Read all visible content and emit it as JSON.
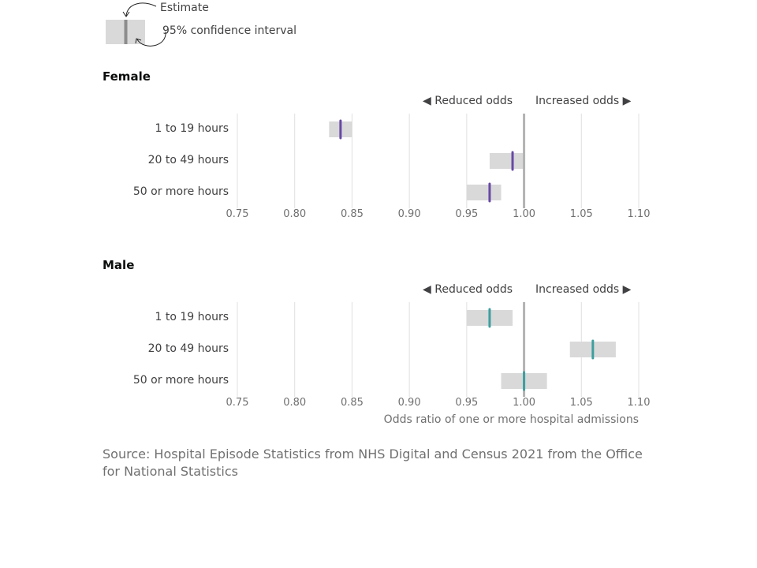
{
  "legend": {
    "estimate_label": "Estimate",
    "ci_label": "95% confidence interval"
  },
  "directions": {
    "reduced": "◀ Reduced odds",
    "increased": "Increased odds ▶"
  },
  "x_axis_label": "Odds ratio of one or more hospital admissions",
  "source": "Source: Hospital Episode Statistics from NHS Digital and Census 2021 from the Office for National Statistics",
  "colors": {
    "female_estimate": "#6749a6",
    "male_estimate": "#3d9f9f",
    "interval": "#d9d9d9",
    "reference_line": "#b3b3b3",
    "grid": "#e0e0e0",
    "legend_estimate": "#8c8c8c"
  },
  "chart_data": [
    {
      "type": "forest",
      "title": "Female",
      "categories": [
        "1 to 19 hours",
        "20 to 49 hours",
        "50 or more hours"
      ],
      "estimates": [
        0.84,
        0.99,
        0.97
      ],
      "ci_lower": [
        0.83,
        0.97,
        0.95
      ],
      "ci_upper": [
        0.85,
        1.0,
        0.98
      ],
      "xlim": [
        0.75,
        1.1
      ],
      "xticks": [
        "0.75",
        "0.80",
        "0.85",
        "0.90",
        "0.95",
        "1.00",
        "1.05",
        "1.10"
      ],
      "reference_value": 1.0,
      "xlabel": "",
      "grid": true
    },
    {
      "type": "forest",
      "title": "Male",
      "categories": [
        "1 to 19 hours",
        "20 to 49 hours",
        "50 or more hours"
      ],
      "estimates": [
        0.97,
        1.06,
        1.0
      ],
      "ci_lower": [
        0.95,
        1.04,
        0.98
      ],
      "ci_upper": [
        0.99,
        1.08,
        1.02
      ],
      "xlim": [
        0.75,
        1.1
      ],
      "xticks": [
        "0.75",
        "0.80",
        "0.85",
        "0.90",
        "0.95",
        "1.00",
        "1.05",
        "1.10"
      ],
      "reference_value": 1.0,
      "xlabel": "Odds ratio of one or more hospital admissions",
      "grid": true
    }
  ]
}
